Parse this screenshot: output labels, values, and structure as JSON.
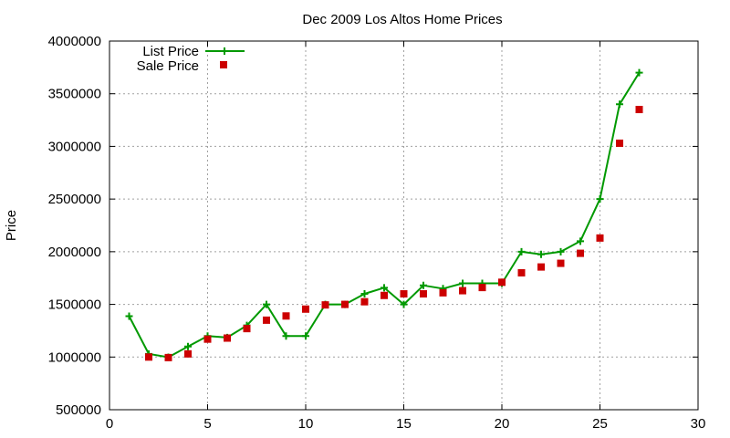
{
  "chart_data": {
    "type": "line",
    "title": "Dec 2009 Los Altos Home Prices",
    "xlabel": "",
    "ylabel": "Price",
    "xlim": [
      0,
      30
    ],
    "ylim": [
      500000,
      4000000
    ],
    "x_ticks": [
      0,
      5,
      10,
      15,
      20,
      25,
      30
    ],
    "y_ticks": [
      500000,
      1000000,
      1500000,
      2000000,
      2500000,
      3000000,
      3500000,
      4000000
    ],
    "grid": true,
    "legend_position": "top-left",
    "series": [
      {
        "name": "List Price",
        "style": "line+points",
        "marker": "plus",
        "color": "#009900",
        "x": [
          1,
          2,
          3,
          4,
          5,
          6,
          7,
          8,
          9,
          10,
          11,
          12,
          13,
          14,
          15,
          16,
          17,
          18,
          19,
          20,
          21,
          22,
          23,
          24,
          25,
          26,
          27
        ],
        "y": [
          1388000,
          1030000,
          998000,
          1100000,
          1200000,
          1185000,
          1300000,
          1500000,
          1200000,
          1200000,
          1500000,
          1500000,
          1600000,
          1658000,
          1500000,
          1680000,
          1650000,
          1700000,
          1700000,
          1700000,
          2000000,
          1975000,
          2000000,
          2100000,
          2500000,
          3400000,
          3700000
        ]
      },
      {
        "name": "Sale Price",
        "style": "points",
        "marker": "square",
        "color": "#cc0000",
        "x": [
          2,
          3,
          4,
          5,
          6,
          7,
          8,
          9,
          10,
          11,
          12,
          13,
          14,
          15,
          16,
          17,
          18,
          19,
          20,
          21,
          22,
          23,
          24,
          25,
          26,
          27
        ],
        "y": [
          1000000,
          995000,
          1030000,
          1170000,
          1180000,
          1270000,
          1350000,
          1390000,
          1455000,
          1495000,
          1500000,
          1525000,
          1585000,
          1600000,
          1600000,
          1610000,
          1630000,
          1660000,
          1710000,
          1800000,
          1855000,
          1890000,
          1985000,
          2130000,
          3030000,
          3350000
        ]
      }
    ]
  }
}
